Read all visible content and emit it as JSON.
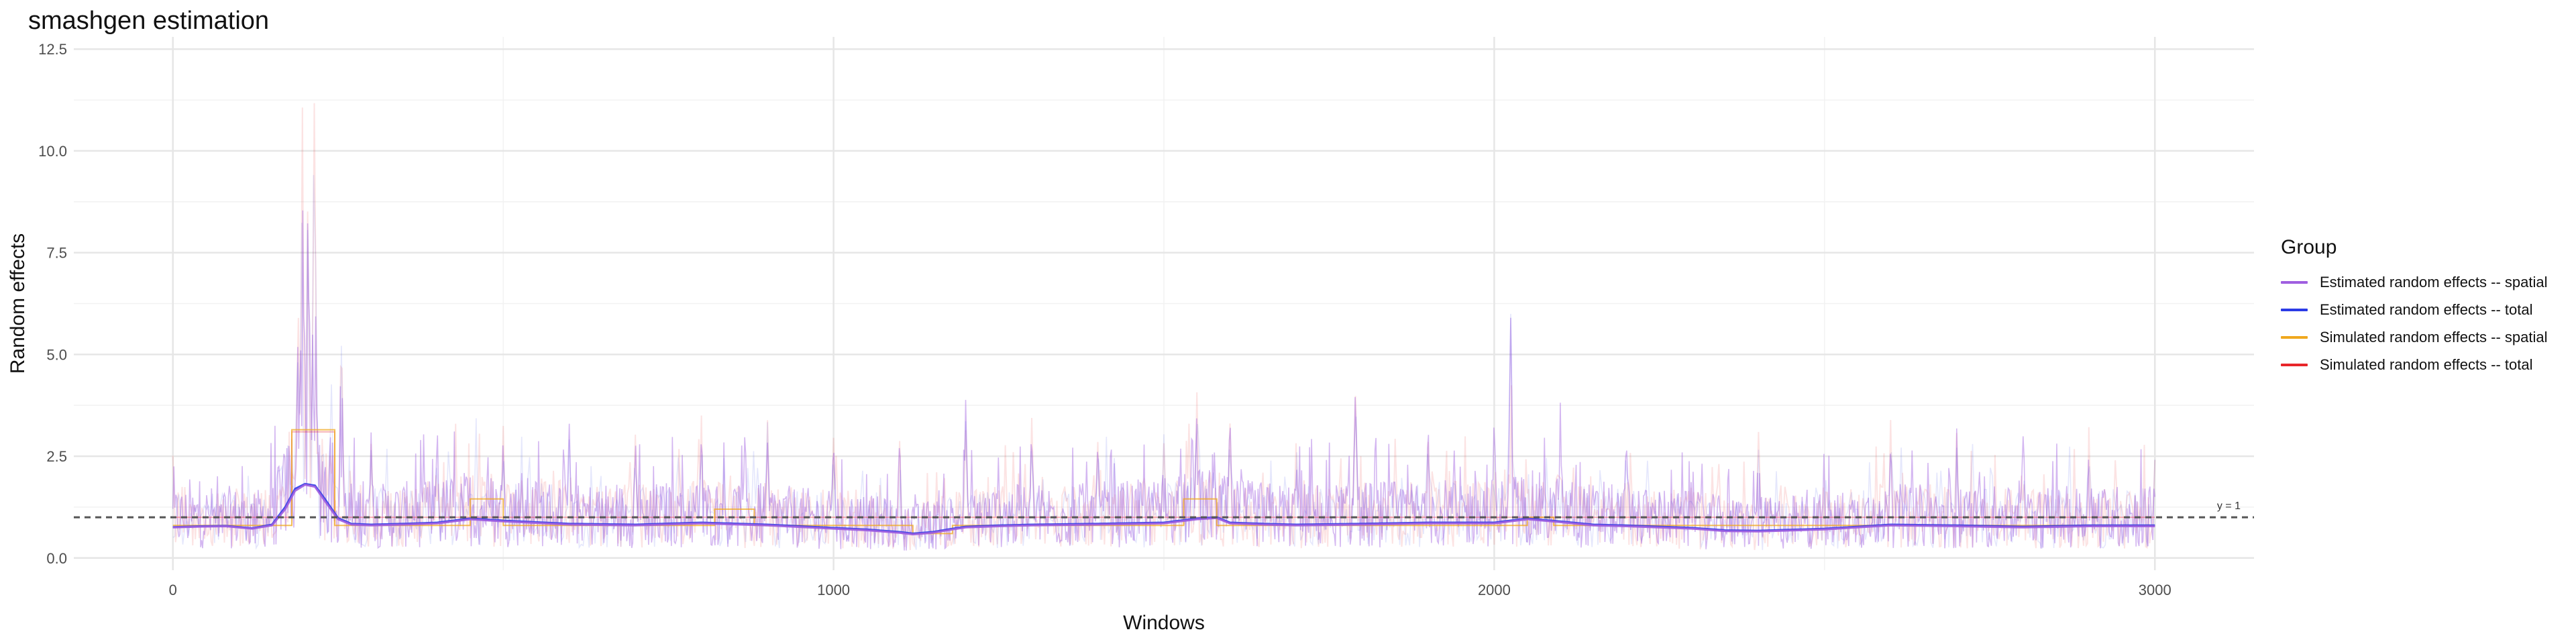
{
  "chart_data": {
    "type": "line",
    "title": "smashgen estimation",
    "xlabel": "Windows",
    "ylabel": "Random effects",
    "xlim": [
      -150,
      3150
    ],
    "ylim": [
      -0.3,
      12.8
    ],
    "xticks": [
      0,
      1000,
      2000,
      3000
    ],
    "yticks": [
      0.0,
      2.5,
      5.0,
      7.5,
      10.0,
      12.5
    ],
    "xtick_labels": [
      "0",
      "1000",
      "2000",
      "3000"
    ],
    "ytick_labels": [
      "0.0",
      "2.5",
      "5.0",
      "7.5",
      "10.0",
      "12.5"
    ],
    "grid": true,
    "legend": {
      "title": "Group",
      "position": "right",
      "entries": [
        {
          "label": "Estimated random effects -- spatial",
          "color": "#A05FE0"
        },
        {
          "label": "Estimated random effects -- total",
          "color": "#2B3BE6"
        },
        {
          "label": "Simulated random effects -- spatial",
          "color": "#F0A81E"
        },
        {
          "label": "Simulated random effects -- total",
          "color": "#E8262A"
        }
      ]
    },
    "reference_line": {
      "y": 1,
      "label": "y = 1",
      "style": "dashed",
      "color": "#555555"
    },
    "series": [
      {
        "name": "Estimated random effects -- spatial",
        "color": "#A05FE0",
        "x": [
          0,
          40,
          80,
          120,
          150,
          170,
          185,
          200,
          215,
          230,
          250,
          270,
          300,
          350,
          400,
          450,
          500,
          600,
          700,
          800,
          900,
          1000,
          1050,
          1100,
          1120,
          1150,
          1180,
          1200,
          1250,
          1300,
          1400,
          1500,
          1550,
          1580,
          1600,
          1650,
          1700,
          1800,
          1900,
          2000,
          2050,
          2100,
          2150,
          2200,
          2300,
          2350,
          2400,
          2500,
          2600,
          2700,
          2800,
          2900,
          3000
        ],
        "y": [
          0.75,
          0.77,
          0.78,
          0.72,
          0.8,
          1.2,
          1.65,
          1.8,
          1.75,
          1.4,
          0.95,
          0.82,
          0.8,
          0.82,
          0.85,
          0.95,
          0.9,
          0.82,
          0.8,
          0.85,
          0.8,
          0.72,
          0.68,
          0.62,
          0.58,
          0.62,
          0.7,
          0.75,
          0.78,
          0.8,
          0.82,
          0.85,
          0.95,
          0.98,
          0.85,
          0.82,
          0.8,
          0.82,
          0.85,
          0.85,
          0.95,
          0.88,
          0.8,
          0.78,
          0.72,
          0.66,
          0.65,
          0.7,
          0.8,
          0.78,
          0.75,
          0.78,
          0.78
        ]
      },
      {
        "name": "Estimated random effects -- total",
        "color": "#2B3BE6",
        "x": [
          0,
          40,
          80,
          120,
          150,
          170,
          185,
          200,
          215,
          230,
          250,
          270,
          300,
          350,
          400,
          450,
          500,
          600,
          700,
          800,
          900,
          1000,
          1050,
          1100,
          1120,
          1150,
          1180,
          1200,
          1250,
          1300,
          1400,
          1500,
          1550,
          1580,
          1600,
          1650,
          1700,
          1800,
          1900,
          2000,
          2050,
          2100,
          2150,
          2200,
          2300,
          2350,
          2400,
          2500,
          2600,
          2700,
          2800,
          2900,
          3000
        ],
        "y": [
          0.76,
          0.78,
          0.79,
          0.73,
          0.82,
          1.25,
          1.7,
          1.82,
          1.78,
          1.45,
          0.98,
          0.84,
          0.82,
          0.84,
          0.87,
          0.97,
          0.92,
          0.84,
          0.82,
          0.87,
          0.82,
          0.74,
          0.7,
          0.64,
          0.6,
          0.64,
          0.72,
          0.77,
          0.8,
          0.82,
          0.84,
          0.87,
          0.97,
          1.0,
          0.87,
          0.84,
          0.82,
          0.84,
          0.87,
          0.87,
          0.97,
          0.9,
          0.82,
          0.8,
          0.74,
          0.68,
          0.67,
          0.72,
          0.82,
          0.8,
          0.77,
          0.8,
          0.8
        ]
      },
      {
        "name": "Simulated random effects -- spatial",
        "color": "#F0A81E",
        "x": [
          0,
          180,
          180,
          245,
          245,
          450,
          450,
          500,
          500,
          820,
          820,
          880,
          880,
          1120,
          1120,
          1180,
          1180,
          1530,
          1530,
          1580,
          1580,
          2050,
          2050,
          2090,
          2090,
          3000
        ],
        "y": [
          0.8,
          0.8,
          3.15,
          3.15,
          0.8,
          0.8,
          1.45,
          1.45,
          0.8,
          0.8,
          1.2,
          1.2,
          0.8,
          0.8,
          0.6,
          0.6,
          0.8,
          0.8,
          1.45,
          1.45,
          0.8,
          0.8,
          1.0,
          1.0,
          0.8,
          0.8
        ]
      },
      {
        "name": "Simulated random effects -- total",
        "color": "#E8262A",
        "x": [
          0,
          180,
          180,
          245,
          245,
          3000
        ],
        "y": [
          1.0,
          1.0,
          3.1,
          3.1,
          1.0,
          1.0
        ]
      }
    ],
    "raw_noise_peaks": {
      "x": [
        160,
        190,
        196,
        204,
        214,
        240,
        255,
        300,
        400,
        500,
        600,
        700,
        800,
        900,
        1000,
        1100,
        1200,
        1300,
        1400,
        1500,
        1550,
        1600,
        1700,
        1790,
        1900,
        2000,
        2025,
        2100,
        2200,
        2300,
        2400,
        2500,
        2600,
        2700,
        2800,
        2900,
        3000
      ],
      "y": [
        2.9,
        7.2,
        11.2,
        9.5,
        12.2,
        4.8,
        6.3,
        3.2,
        3.4,
        3.3,
        3.5,
        3.2,
        3.6,
        3.4,
        3.3,
        3.1,
        3.9,
        3.5,
        3.3,
        3.4,
        4.3,
        3.9,
        3.3,
        4.9,
        3.4,
        3.6,
        6.2,
        3.9,
        3.6,
        3.2,
        3.1,
        3.3,
        3.4,
        3.2,
        3.4,
        3.3,
        2.5
      ]
    }
  }
}
